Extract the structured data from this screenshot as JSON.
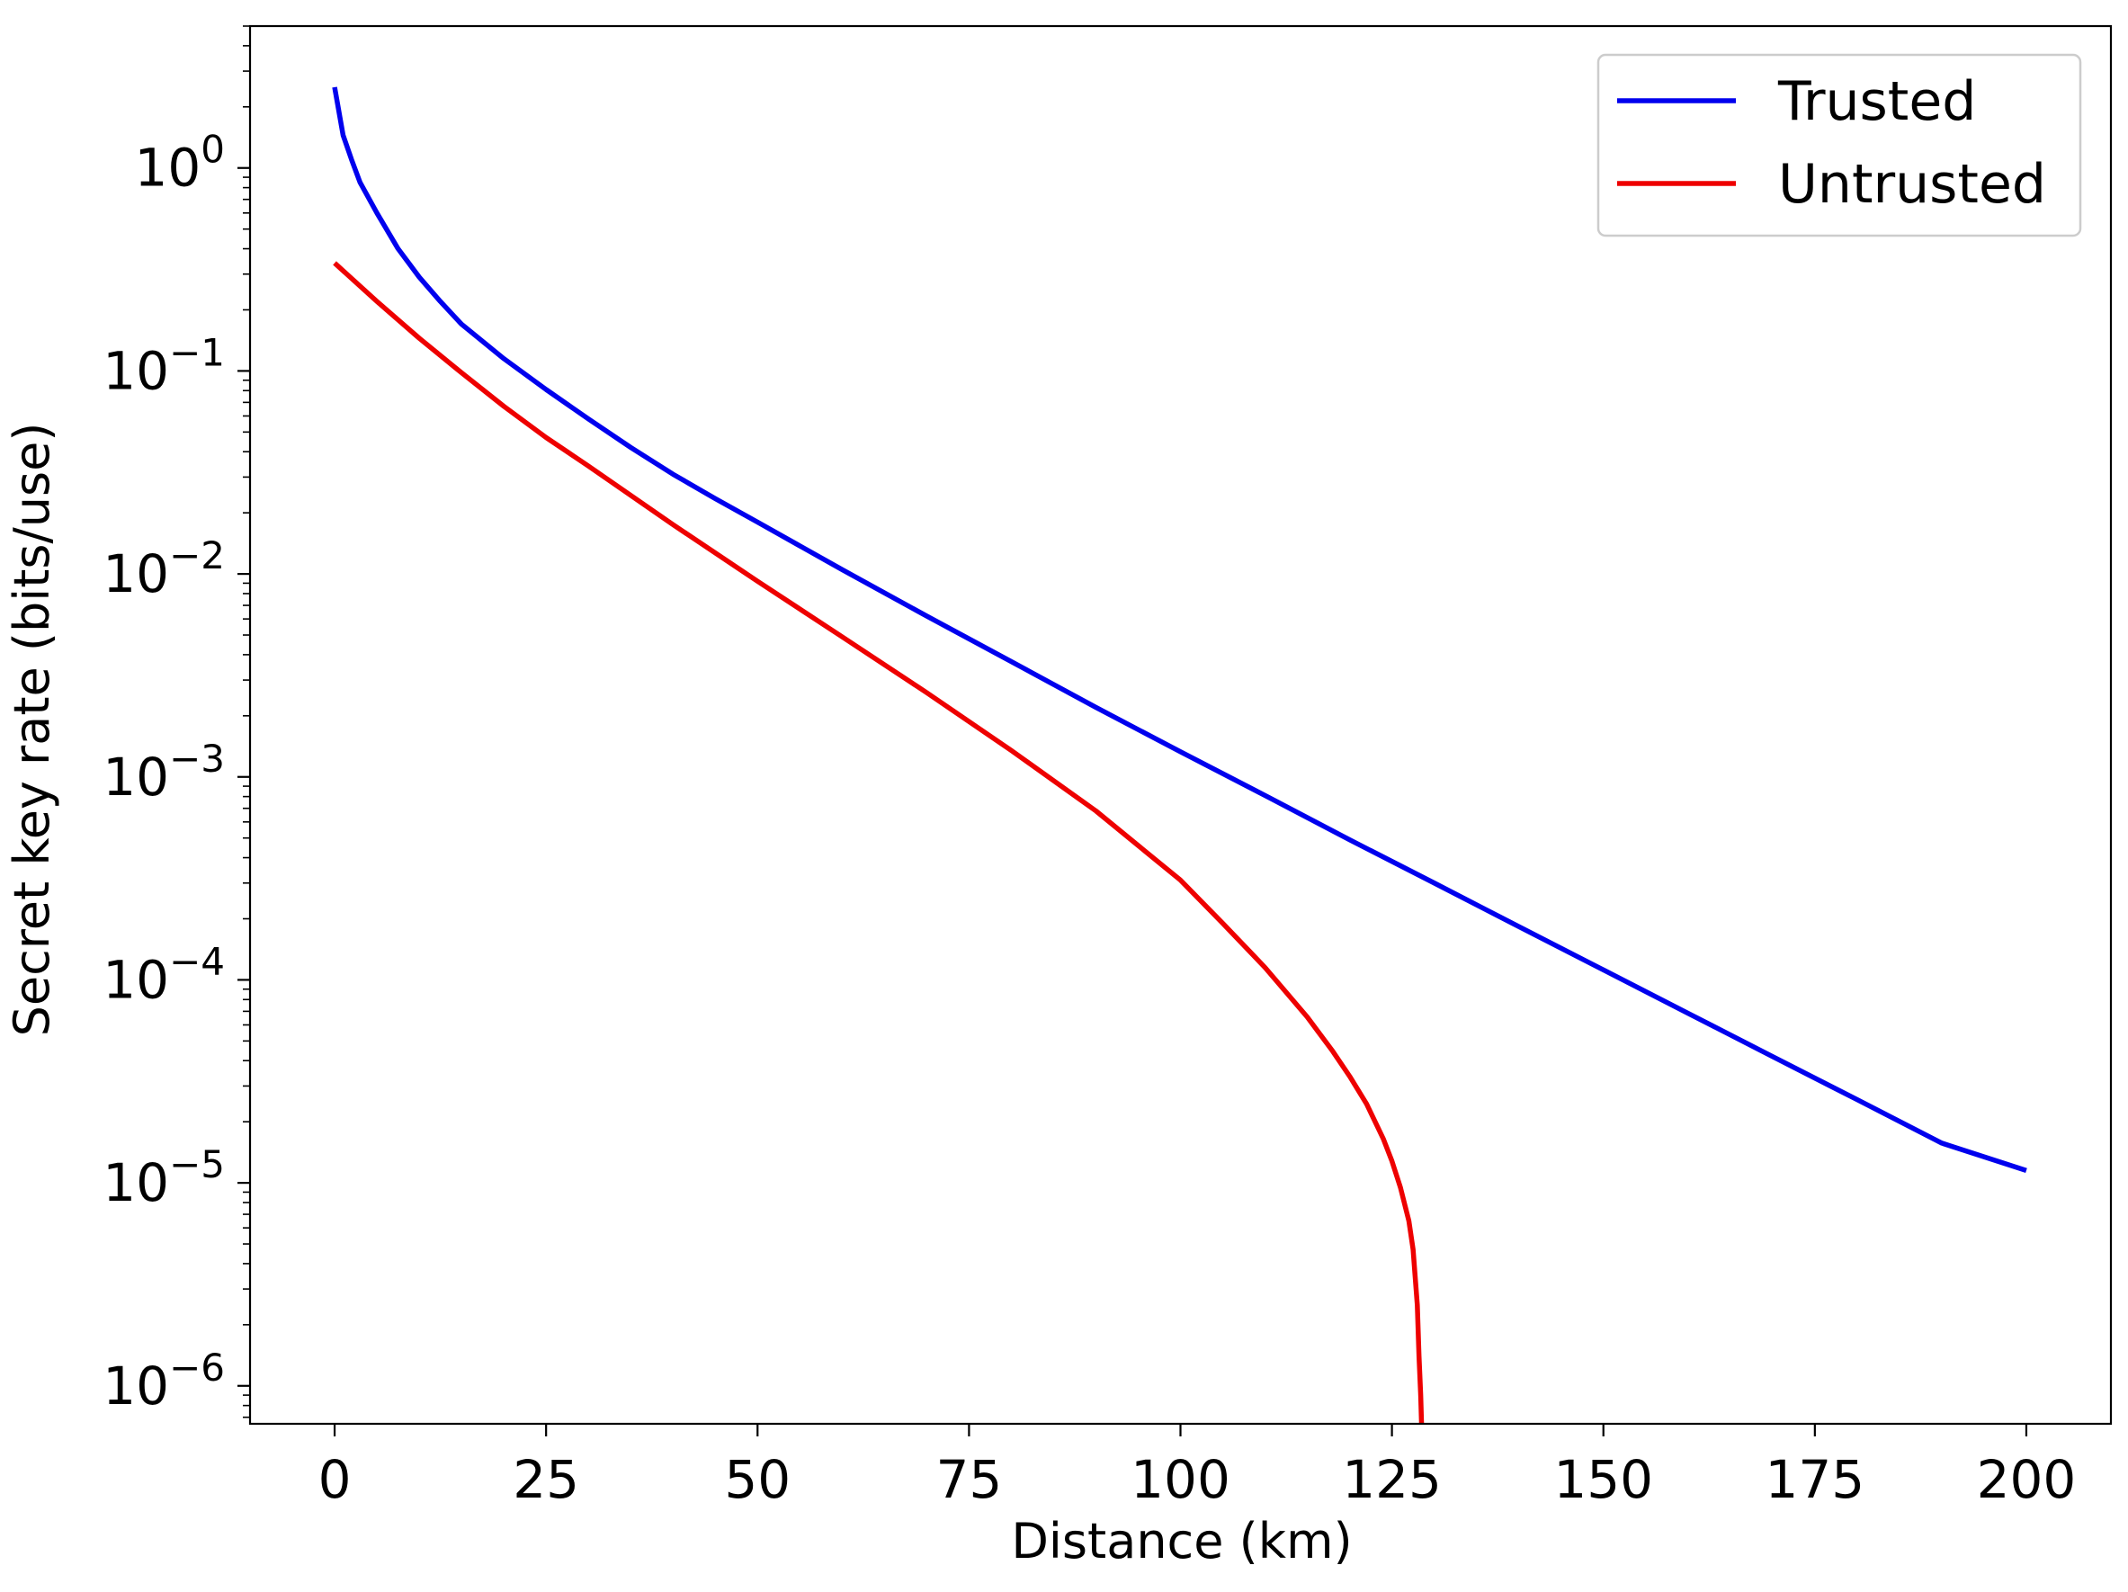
{
  "chart_data": {
    "type": "line",
    "title": "",
    "xlabel": "Distance (km)",
    "ylabel": "Secret key rate (bits/use)",
    "xlim": [
      -10,
      210
    ],
    "ylim": [
      6.5e-07,
      5
    ],
    "yscale": "log",
    "grid": false,
    "legend_position": "top-right",
    "x_ticks": [
      {
        "value": 0,
        "label": "0"
      },
      {
        "value": 25,
        "label": "25"
      },
      {
        "value": 50,
        "label": "50"
      },
      {
        "value": 75,
        "label": "75"
      },
      {
        "value": 100,
        "label": "100"
      },
      {
        "value": 125,
        "label": "125"
      },
      {
        "value": 150,
        "label": "150"
      },
      {
        "value": 175,
        "label": "175"
      },
      {
        "value": 200,
        "label": "200"
      }
    ],
    "y_ticks": [
      {
        "value": 1,
        "base": "10",
        "exp": "0"
      },
      {
        "value": 0.1,
        "base": "10",
        "exp": "−1"
      },
      {
        "value": 0.01,
        "base": "10",
        "exp": "−2"
      },
      {
        "value": 0.001,
        "base": "10",
        "exp": "−3"
      },
      {
        "value": 0.0001,
        "base": "10",
        "exp": "−4"
      },
      {
        "value": 1e-05,
        "base": "10",
        "exp": "−5"
      },
      {
        "value": 1e-06,
        "base": "10",
        "exp": "−6"
      }
    ],
    "series": [
      {
        "name": "Trusted",
        "color": "#0000ee",
        "x": [
          0,
          1,
          2,
          3,
          5,
          7.5,
          10,
          12.5,
          15,
          20,
          25,
          30,
          35,
          40,
          45,
          50,
          60,
          70,
          80,
          90,
          100,
          110,
          120,
          130,
          140,
          150,
          160,
          170,
          180,
          190,
          200
        ],
        "y": [
          2.5,
          1.45,
          1.1,
          0.85,
          0.6,
          0.4,
          0.29,
          0.22,
          0.17,
          0.115,
          0.081,
          0.058,
          0.042,
          0.031,
          0.0235,
          0.018,
          0.0105,
          0.0062,
          0.0037,
          0.0022,
          0.00133,
          0.00081,
          0.00049,
          0.0003,
          0.000183,
          0.000112,
          6.85e-05,
          4.19e-05,
          2.57e-05,
          1.57e-05,
          1.15e-05
        ]
      },
      {
        "name": "Untrusted",
        "color": "#ee0000",
        "x": [
          0,
          5,
          10,
          15,
          20,
          25,
          30,
          40,
          50,
          60,
          70,
          80,
          90,
          100,
          105,
          110,
          115,
          118,
          120,
          122,
          124,
          125,
          126,
          127,
          127.5,
          128,
          128.2,
          128.4,
          128.5
        ],
        "y": [
          0.34,
          0.22,
          0.145,
          0.098,
          0.067,
          0.047,
          0.034,
          0.0175,
          0.0092,
          0.0049,
          0.0026,
          0.00135,
          0.00068,
          0.00031,
          0.00019,
          0.000115,
          6.55e-05,
          4.45e-05,
          3.35e-05,
          2.45e-05,
          1.64e-05,
          1.28e-05,
          9.5e-06,
          6.5e-06,
          4.7e-06,
          2.5e-06,
          1.4e-06,
          9e-07,
          6.5e-07
        ]
      }
    ]
  }
}
